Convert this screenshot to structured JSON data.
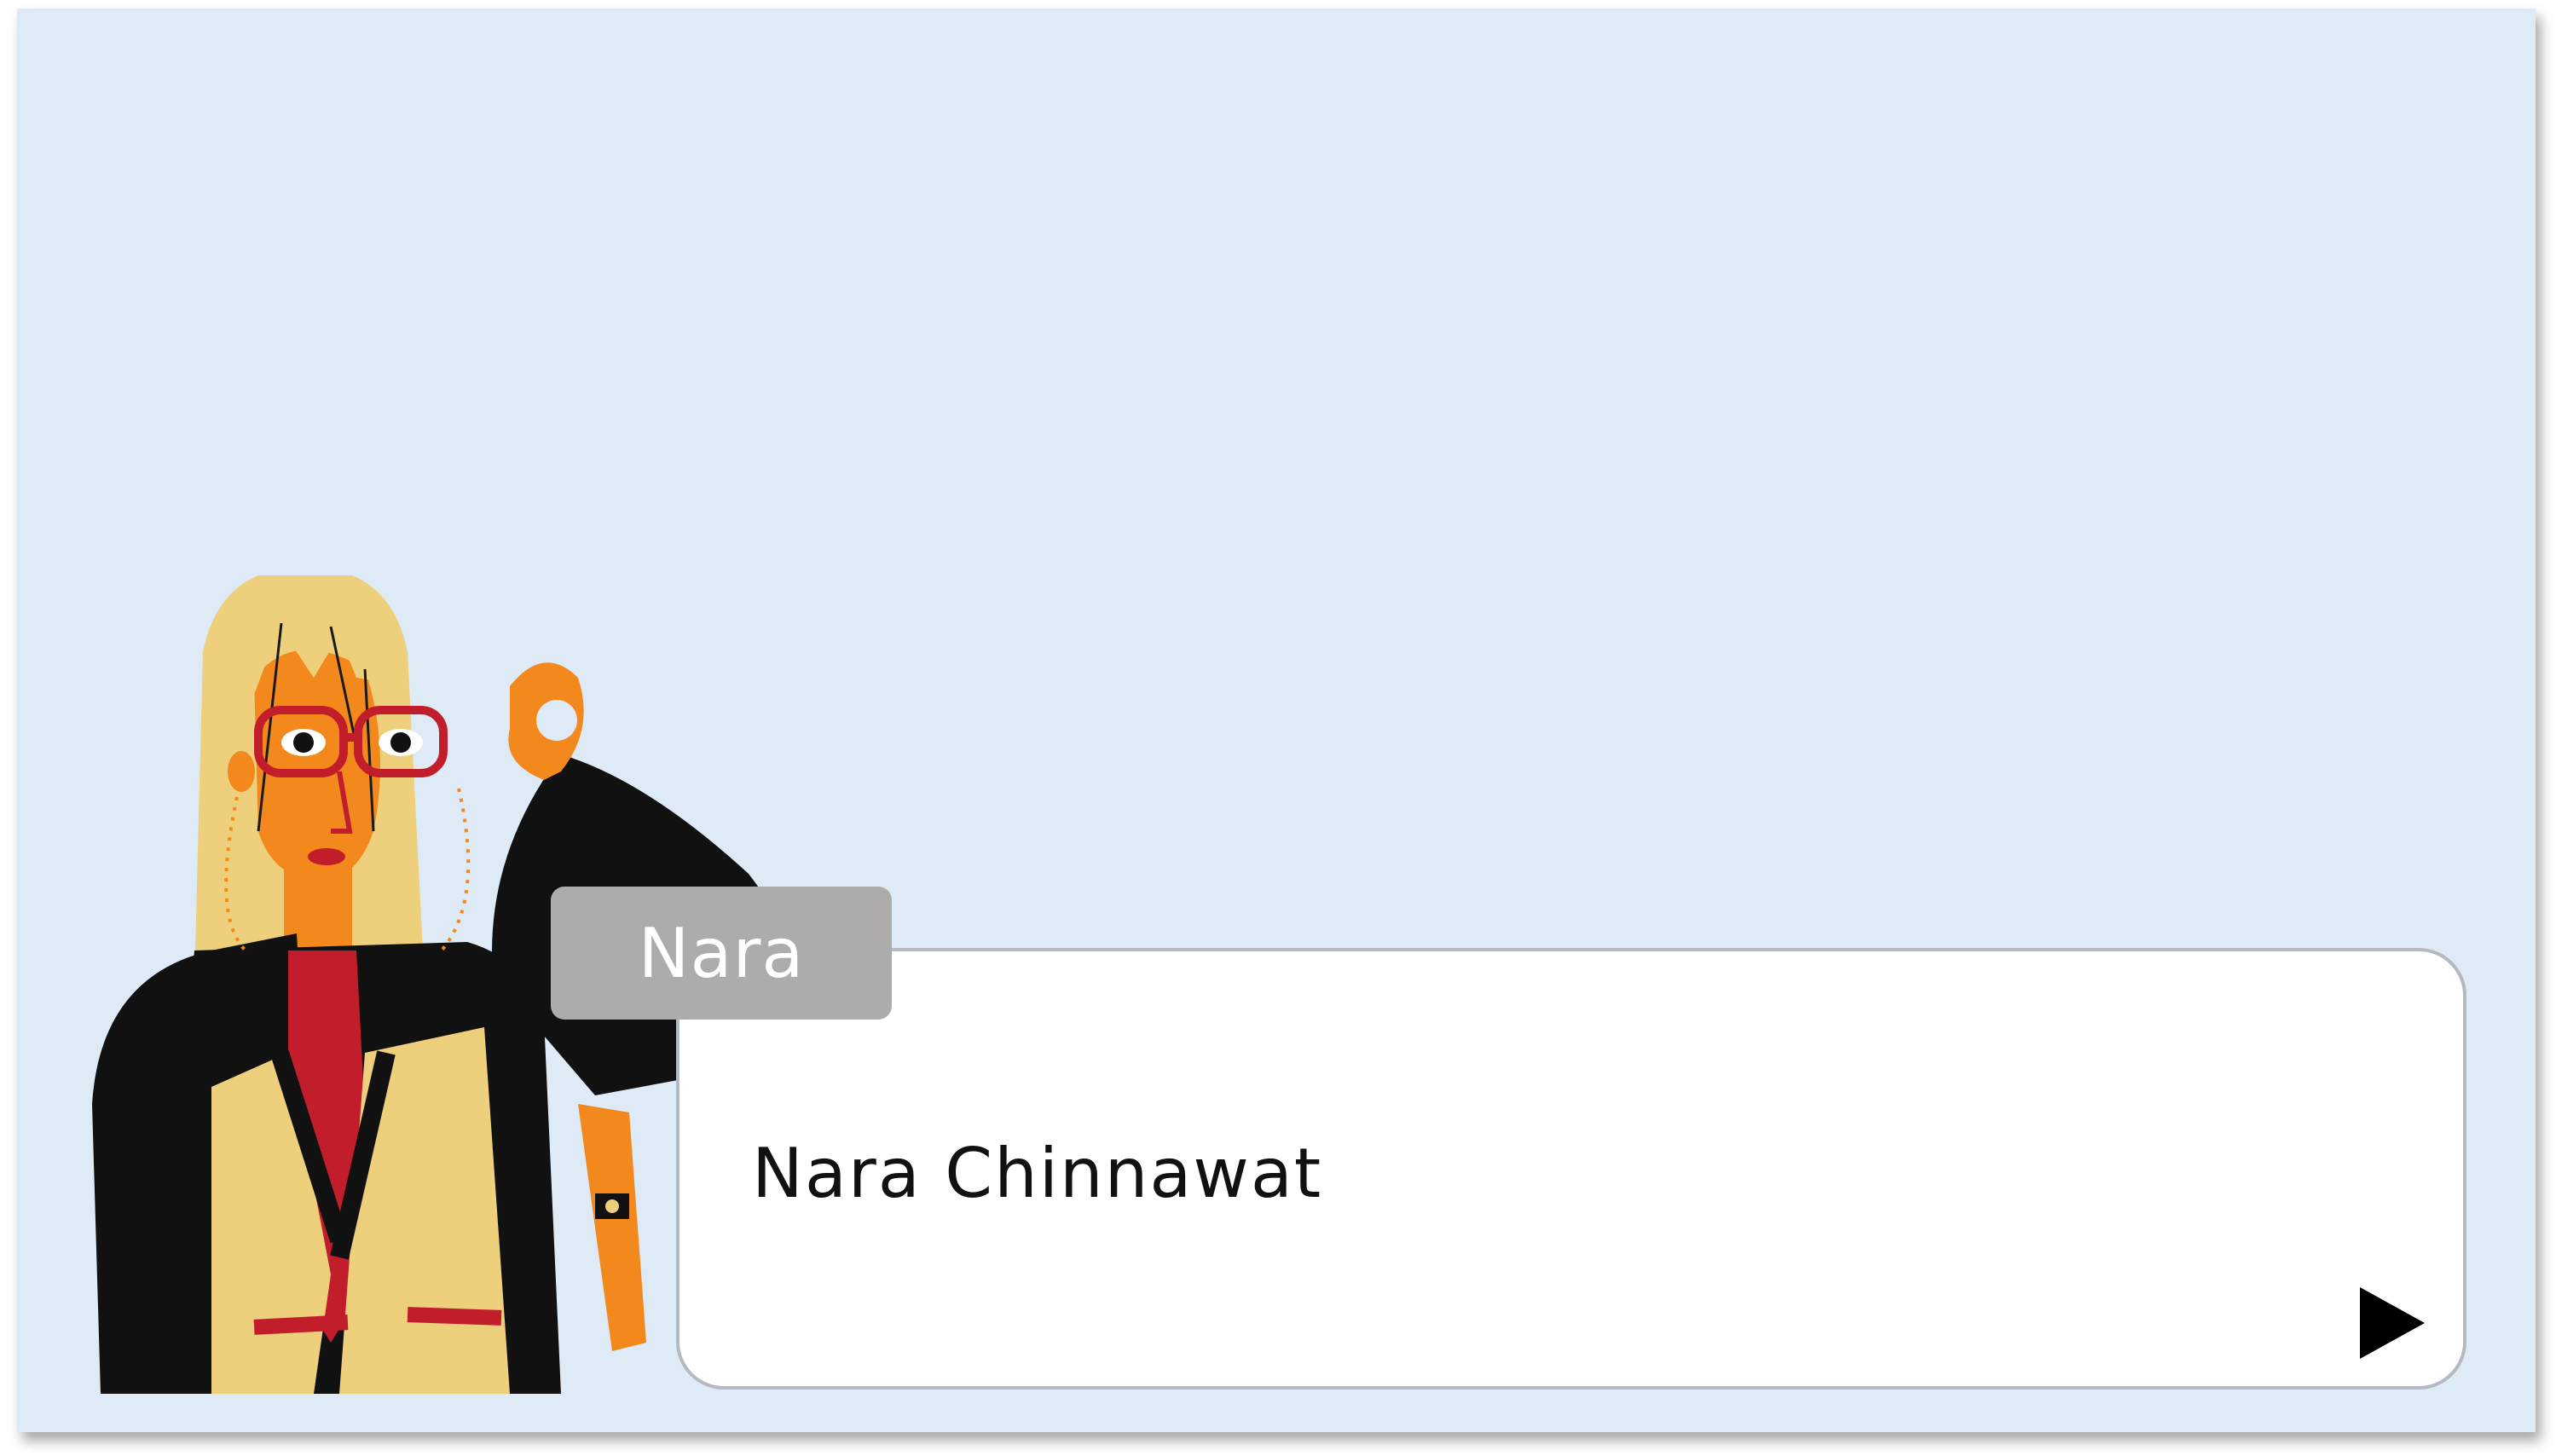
{
  "speaker": {
    "name": "Nara"
  },
  "dialog": {
    "text": "Nara Chinnawat"
  },
  "icons": {
    "next": "play-arrow-icon",
    "character": "character-portrait"
  },
  "colors": {
    "background": "#deeaf6",
    "dialog_box": "#ffffff",
    "dialog_border": "#b5bac2",
    "name_tab": "#aeabab",
    "name_text": "#ffffff",
    "dialog_text": "#111111"
  }
}
